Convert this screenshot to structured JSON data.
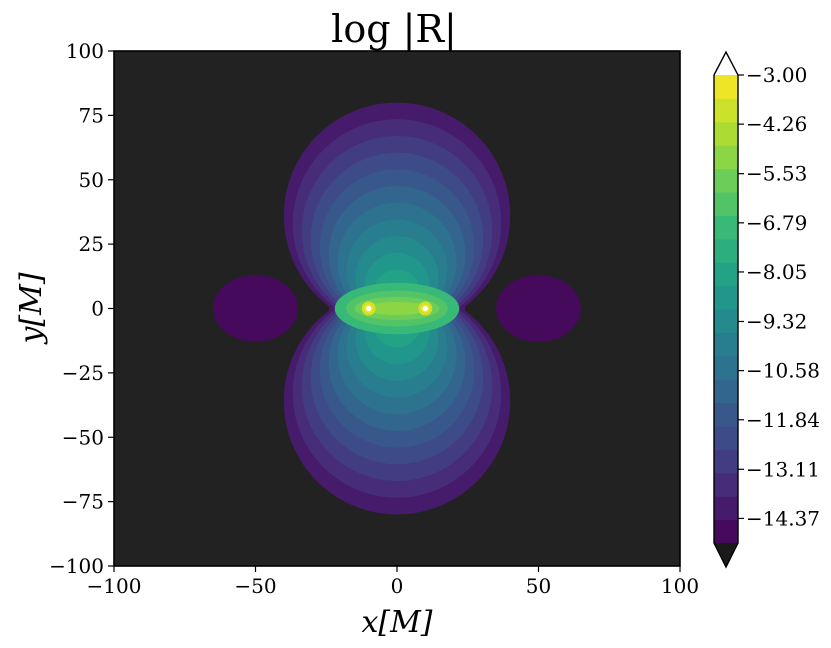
{
  "chart_data": {
    "type": "heatmap",
    "title": "log |R|",
    "xlabel": "x[M]",
    "ylabel": "y[M]",
    "xlim": [
      -100,
      100
    ],
    "ylim": [
      -100,
      100
    ],
    "x_ticks": [
      -100,
      -50,
      0,
      50,
      100
    ],
    "x_tick_labels": [
      "−100",
      "−50",
      "0",
      "50",
      "100"
    ],
    "y_ticks": [
      100,
      75,
      50,
      25,
      0,
      -25,
      -50,
      -75,
      -100
    ],
    "y_tick_labels": [
      "100",
      "75",
      "50",
      "25",
      "0",
      "−25",
      "−50",
      "−75",
      "−100"
    ],
    "grid": false,
    "background_color": "#222222",
    "colormap": "viridis",
    "color_range": [
      -15,
      -3
    ],
    "colorbar_extend": "both",
    "colorbar_ticks": [
      -3.0,
      -4.26,
      -5.53,
      -6.79,
      -8.05,
      -9.32,
      -10.58,
      -11.84,
      -13.11,
      -14.37
    ],
    "colorbar_tick_labels": [
      "−3.00",
      "−4.26",
      "−5.53",
      "−6.79",
      "−8.05",
      "−9.32",
      "−10.58",
      "−11.84",
      "−13.11",
      "−14.37"
    ],
    "sources": [
      {
        "x": -10,
        "y": 0
      },
      {
        "x": 10,
        "y": 0
      }
    ]
  }
}
